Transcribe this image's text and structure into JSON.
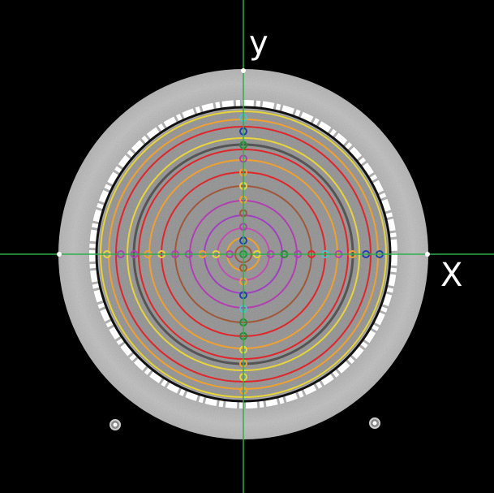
{
  "labels": {
    "y_axis": "y",
    "x_axis": "X"
  }
}
